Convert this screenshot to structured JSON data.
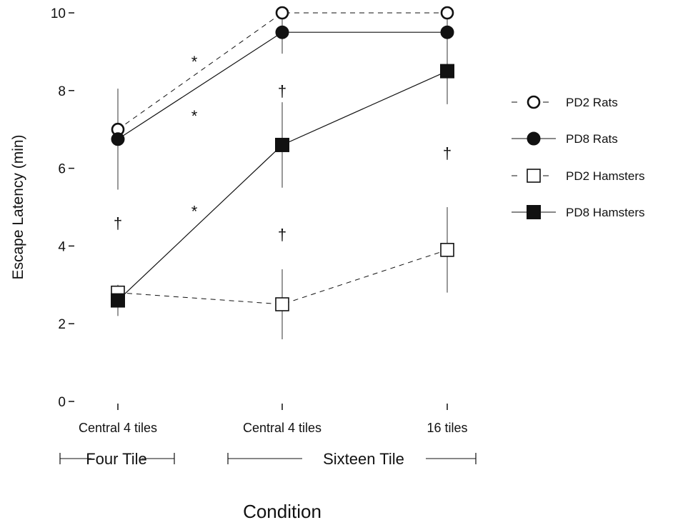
{
  "chart_data": {
    "type": "line",
    "ylabel": "Escape Latency (min)",
    "xlabel": "Condition",
    "ylim": [
      0,
      10
    ],
    "yticks": [
      "0",
      "2",
      "4",
      "6",
      "8",
      "10"
    ],
    "categories": [
      "Central 4 tiles",
      "Central 4 tiles",
      "16 tiles"
    ],
    "groups": [
      {
        "label": "Four Tile",
        "spans": [
          0
        ]
      },
      {
        "label": "Sixteen Tile",
        "spans": [
          1,
          2
        ]
      }
    ],
    "series": [
      {
        "name": "PD2 Rats",
        "values": [
          7.0,
          10.0,
          10.0
        ],
        "error": [
          null,
          null,
          null
        ],
        "marker": "circle-open",
        "line": "dashed"
      },
      {
        "name": "PD8 Rats",
        "values": [
          6.75,
          9.5,
          9.5
        ],
        "error": [
          1.3,
          0.55,
          0.5
        ],
        "marker": "circle-filled",
        "line": "solid"
      },
      {
        "name": "PD2 Hamsters",
        "values": [
          2.8,
          2.5,
          3.9
        ],
        "error": [
          null,
          0.9,
          1.1
        ],
        "marker": "square-open",
        "line": "dashed"
      },
      {
        "name": "PD8 Hamsters",
        "values": [
          2.6,
          6.6,
          8.5
        ],
        "error": [
          0.4,
          1.1,
          0.85
        ],
        "marker": "square-filled",
        "line": "solid"
      }
    ],
    "annotations": [
      {
        "text": "*",
        "x": 0.5,
        "y": 8.75
      },
      {
        "text": "*",
        "x": 0.5,
        "y": 7.35
      },
      {
        "text": "*",
        "x": 0.5,
        "y": 4.9
      },
      {
        "text": "†",
        "x": 0,
        "y": 4.6
      },
      {
        "text": "†",
        "x": 1,
        "y": 8.0
      },
      {
        "text": "†",
        "x": 1,
        "y": 4.3
      },
      {
        "text": "†",
        "x": 2,
        "y": 6.4
      }
    ],
    "legend_position": "right",
    "grid": false
  }
}
